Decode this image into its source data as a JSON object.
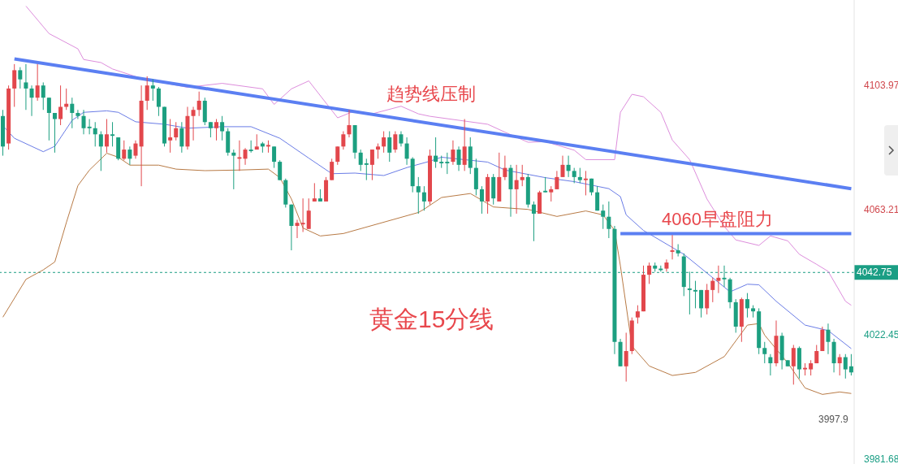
{
  "chart_data": {
    "type": "candlestick",
    "categories": [
      null,
      null,
      null,
      null,
      null,
      null,
      null,
      null,
      null,
      null,
      null,
      null,
      null,
      null,
      null,
      null,
      null,
      null,
      null,
      null,
      null,
      null,
      null,
      null,
      null,
      null,
      null,
      null,
      null,
      null,
      null,
      null,
      null,
      null,
      null,
      null,
      null,
      null,
      null,
      null,
      null,
      null,
      null,
      null,
      null,
      null,
      null,
      null,
      null,
      null,
      null,
      null,
      null,
      null,
      null,
      null,
      null,
      null,
      null,
      null,
      null,
      null,
      null,
      null,
      null,
      null,
      null,
      null,
      null,
      null,
      null,
      null,
      null,
      null,
      null,
      null,
      null,
      null,
      null,
      null,
      null,
      null,
      null,
      null,
      null,
      null,
      null,
      null,
      null,
      null,
      null,
      null,
      null,
      null,
      null,
      null,
      null,
      null,
      null,
      null,
      null,
      null,
      null,
      null,
      null,
      null,
      null,
      null,
      null,
      null,
      null,
      null,
      null,
      null,
      null,
      null,
      null,
      null,
      null,
      null,
      null,
      null,
      null,
      null,
      null,
      null,
      null,
      null,
      null,
      null,
      null,
      null,
      null,
      null,
      null,
      null,
      null,
      null,
      null,
      null,
      null,
      null,
      null,
      null,
      null,
      null,
      null,
      null
    ],
    "ohlc": [
      [
        4094,
        4096,
        4081,
        4084
      ],
      [
        4085,
        4104,
        4083,
        4103
      ],
      [
        4103,
        4111,
        4097,
        4109
      ],
      [
        4109,
        4110,
        4103,
        4106
      ],
      [
        4105,
        4111,
        4096,
        4103
      ],
      [
        4103,
        4104,
        4094,
        4100
      ],
      [
        4100,
        4111,
        4099,
        4104
      ],
      [
        4104,
        4105,
        4096,
        4100
      ],
      [
        4100,
        4100,
        4086,
        4095
      ],
      [
        4095,
        4095,
        4082,
        4093
      ],
      [
        4093,
        4104,
        4091,
        4097
      ],
      [
        4097,
        4103,
        4096,
        4098
      ],
      [
        4098,
        4100,
        4090,
        4095
      ],
      [
        4095,
        4096,
        4093,
        4094
      ],
      [
        4094,
        4096,
        4088,
        4090
      ],
      [
        4090.5,
        4093,
        4088,
        4090
      ],
      [
        4090,
        4092,
        4084,
        4088
      ],
      [
        4088,
        4089,
        4076,
        4084
      ],
      [
        4084,
        4093,
        4082,
        4088
      ],
      [
        4088,
        4092,
        4084,
        4087.5
      ],
      [
        4087,
        4087,
        4079.5,
        4080
      ],
      [
        4080,
        4086,
        4079.5,
        4083
      ],
      [
        4083,
        4084,
        4078,
        4080
      ],
      [
        4081,
        4086,
        4080,
        4085
      ],
      [
        4084,
        4104,
        4071,
        4099
      ],
      [
        4099,
        4107,
        4096,
        4104
      ],
      [
        4104,
        4106,
        4099,
        4103
      ],
      [
        4103,
        4103.5,
        4094,
        4097
      ],
      [
        4097,
        4097,
        4084,
        4085
      ],
      [
        4086,
        4093,
        4082,
        4087
      ],
      [
        4087,
        4092,
        4086,
        4090
      ],
      [
        4090,
        4092,
        4082,
        4084
      ],
      [
        4084,
        4097,
        4083,
        4094
      ],
      [
        4094,
        4097,
        4086,
        4096
      ],
      [
        4096,
        4102,
        4094,
        4099
      ],
      [
        4099,
        4100,
        4091,
        4092
      ],
      [
        4092,
        4092,
        4087,
        4090
      ],
      [
        4090,
        4093,
        4086,
        4092
      ],
      [
        4092,
        4094,
        4086,
        4089
      ],
      [
        4089,
        4090,
        4081,
        4082
      ],
      [
        4082,
        4083,
        4070,
        4081
      ],
      [
        4080,
        4086,
        4076,
        4080.5
      ],
      [
        4080,
        4083.5,
        4078,
        4083
      ],
      [
        4083,
        4086,
        4082,
        4082.5
      ],
      [
        4083,
        4088,
        4083,
        4084
      ],
      [
        4085,
        4085.5,
        4082,
        4084
      ],
      [
        4084,
        4086,
        4082,
        4084.5
      ],
      [
        4084,
        4084,
        4077,
        4079
      ],
      [
        4079,
        4079.5,
        4073,
        4073
      ],
      [
        4073,
        4073.5,
        4064,
        4065
      ],
      [
        4065,
        4065,
        4050,
        4058
      ],
      [
        4058,
        4060,
        4054,
        4059
      ],
      [
        4058.5,
        4067,
        4056,
        4059
      ],
      [
        4057,
        4067,
        4057,
        4063
      ],
      [
        4066,
        4072,
        4066,
        4067
      ],
      [
        4067,
        4070,
        4066,
        4066
      ],
      [
        4066,
        4074,
        4066,
        4073
      ],
      [
        4073,
        4080,
        4073,
        4079
      ],
      [
        4079,
        4084,
        4078,
        4084
      ],
      [
        4084,
        4089,
        4083,
        4088
      ],
      [
        4088,
        4096,
        4087,
        4091
      ],
      [
        4091,
        4091,
        4080,
        4082
      ],
      [
        4082,
        4083,
        4076,
        4078
      ],
      [
        4078.5,
        4080,
        4073,
        4078
      ],
      [
        4078,
        4083,
        4073,
        4083
      ],
      [
        4083,
        4085,
        4080,
        4084
      ],
      [
        4084,
        4089,
        4082,
        4087
      ],
      [
        4087,
        4089,
        4079,
        4082
      ],
      [
        4083,
        4089,
        4082,
        4088
      ],
      [
        4088,
        4089,
        4084,
        4085
      ],
      [
        4085,
        4087,
        4078,
        4080
      ],
      [
        4080,
        4080.5,
        4069,
        4071
      ],
      [
        4071,
        4074,
        4062,
        4069
      ],
      [
        4069,
        4071,
        4063,
        4066
      ],
      [
        4066,
        4083,
        4065,
        4081
      ],
      [
        4081,
        4087,
        4077,
        4079
      ],
      [
        4079,
        4081,
        4077,
        4078.5
      ],
      [
        4079,
        4082,
        4075,
        4078.5
      ],
      [
        4079,
        4086,
        4078,
        4083
      ],
      [
        4083,
        4084,
        4076,
        4078
      ],
      [
        4078,
        4093,
        4076,
        4084
      ],
      [
        4084,
        4087,
        4075,
        4077
      ],
      [
        4077,
        4080,
        4068,
        4070
      ],
      [
        4070,
        4071,
        4062,
        4066
      ],
      [
        4066,
        4075,
        4062,
        4074
      ],
      [
        4074,
        4075,
        4065,
        4067
      ],
      [
        4066,
        4082,
        4066,
        4074
      ],
      [
        4074,
        4081,
        4073,
        4077
      ],
      [
        4077,
        4078,
        4061,
        4070
      ],
      [
        4070,
        4078,
        4062,
        4073
      ],
      [
        4073,
        4078,
        4071,
        4074
      ],
      [
        4074,
        4075,
        4064,
        4065
      ],
      [
        4065,
        4066,
        4053,
        4062
      ],
      [
        4062,
        4069.5,
        4062,
        4069
      ],
      [
        4069.5,
        4074,
        4069,
        4069
      ],
      [
        4069,
        4071,
        4066,
        4070
      ],
      [
        4070,
        4076,
        4070,
        4074
      ],
      [
        4074,
        4081,
        4074,
        4078
      ],
      [
        4078,
        4081,
        4074,
        4076
      ],
      [
        4076,
        4077,
        4072,
        4074
      ],
      [
        4074,
        4077,
        4072,
        4073
      ],
      [
        4073,
        4076,
        4068,
        4073.5
      ],
      [
        4073.5,
        4073.5,
        4068,
        4069
      ],
      [
        4069,
        4071,
        4063,
        4063
      ],
      [
        4063,
        4065,
        4057,
        4061
      ],
      [
        4061,
        4066,
        4054,
        4057
      ],
      [
        4057,
        4058,
        4016,
        4020
      ],
      [
        4020,
        4021,
        4012,
        4012
      ],
      [
        4012,
        4023,
        4007,
        4017
      ],
      [
        4017,
        4028,
        4016,
        4027
      ],
      [
        4028,
        4032,
        4026,
        4030
      ],
      [
        4030,
        4045,
        4030,
        4042
      ],
      [
        4042,
        4046,
        4039,
        4045
      ],
      [
        4045,
        4046,
        4043,
        4044
      ],
      [
        4044,
        4045,
        4043,
        4043.5
      ],
      [
        4044,
        4047,
        4043,
        4046
      ],
      [
        4049.5,
        4055,
        4047,
        4050
      ],
      [
        4050,
        4052,
        4048,
        4049
      ],
      [
        4048,
        4049,
        4035,
        4038
      ],
      [
        4037.5,
        4043,
        4029,
        4037
      ],
      [
        4037,
        4040,
        4031,
        4036.5
      ],
      [
        4037,
        4037,
        4028,
        4031
      ],
      [
        4031,
        4039,
        4029,
        4037
      ],
      [
        4037,
        4041,
        4033,
        4040
      ],
      [
        4040,
        4045,
        4036,
        4041
      ],
      [
        4041,
        4045,
        4038,
        4040.5
      ],
      [
        4040.5,
        4041,
        4031,
        4033
      ],
      [
        4033,
        4034,
        4023,
        4025
      ],
      [
        4025,
        4034.5,
        4020,
        4034
      ],
      [
        4034,
        4036,
        4028,
        4031
      ],
      [
        4031,
        4032,
        4028,
        4030
      ],
      [
        4030,
        4031,
        4016,
        4018
      ],
      [
        4018,
        4020,
        4013,
        4016
      ],
      [
        4015,
        4016,
        4009,
        4013
      ],
      [
        4013,
        4027,
        4012,
        4022
      ],
      [
        4022,
        4023,
        4011,
        4014
      ],
      [
        4014,
        4014,
        4012,
        4012
      ],
      [
        4012,
        4019,
        4006,
        4018
      ],
      [
        4018,
        4018.5,
        4008,
        4011
      ],
      [
        4011,
        4013,
        4009,
        4011.5
      ],
      [
        4011,
        4014,
        4009,
        4013
      ],
      [
        4013,
        4019,
        4013,
        4017
      ],
      [
        4017,
        4025,
        4017,
        4024
      ],
      [
        4024,
        4026,
        4016,
        4020
      ],
      [
        4020,
        4021,
        4010,
        4013
      ],
      [
        4013,
        4016,
        4009,
        4015
      ],
      [
        4015,
        4016,
        4008,
        4011
      ],
      [
        4012,
        4016,
        4009,
        4010
      ]
    ],
    "series": [
      {
        "type": "line",
        "color": "#dd8ddc",
        "values": [
          null,
          null,
          null,
          null,
          4130,
          null,
          null,
          null,
          4121,
          null,
          null,
          null,
          null,
          4116,
          4112.5,
          null,
          null,
          4111.5,
          null,
          4109.4,
          null,
          null,
          null,
          null,
          4106.3,
          null,
          4105.5,
          null,
          null,
          null,
          null,
          null,
          4103.4,
          null,
          null,
          null,
          null,
          null,
          4104.7,
          null,
          null,
          null,
          null,
          null,
          null,
          4102.9,
          null,
          4097.8,
          null,
          null,
          4102.9,
          null,
          null,
          4105.5,
          null,
          null,
          null,
          null,
          4093.4,
          null,
          null,
          4095.7,
          null,
          null,
          4094.7,
          null,
          null,
          null,
          null,
          4097.2,
          null,
          null,
          4094.7,
          null,
          4093.9,
          null,
          null,
          null,
          null,
          4092.6,
          null,
          null,
          null,
          null,
          4091.3,
          null,
          null,
          4088.7,
          null,
          null,
          null,
          4085.4,
          null,
          null,
          4085.6,
          null,
          null,
          null,
          null,
          4082.8,
          null,
          4079.7,
          null,
          null,
          null,
          null,
          4079.7,
          4095.2,
          null,
          4101.1,
          null,
          4100.3,
          null,
          null,
          4095.2,
          null,
          4086.1,
          null,
          null,
          4079.7,
          null,
          null,
          4066.8,
          null,
          null,
          4057.8,
          null,
          4053.4,
          null,
          null,
          null,
          4051.6,
          null,
          4054.7,
          null,
          null,
          4053.1,
          null,
          4048.7,
          null,
          null,
          4045.4,
          null,
          4043.1,
          null,
          null,
          4033.3,
          4032.0
        ]
      },
      {
        "type": "line",
        "color": "#6a7ce6",
        "values": [
          4090.8,
          null,
          4086.7,
          null,
          null,
          null,
          null,
          4082.3,
          null,
          4084.1,
          null,
          null,
          4092.6,
          null,
          4095.2,
          null,
          null,
          null,
          4095.7,
          null,
          4095.2,
          null,
          null,
          4092.1,
          null,
          null,
          null,
          null,
          4091.3,
          null,
          null,
          null,
          4090,
          null,
          null,
          null,
          null,
          null,
          4090.5,
          null,
          null,
          null,
          null,
          4090.5,
          null,
          null,
          null,
          null,
          4086.7,
          null,
          null,
          null,
          null,
          4080.2,
          null,
          null,
          null,
          4075.1,
          null,
          null,
          null,
          4075.3,
          null,
          null,
          null,
          null,
          4074.5,
          null,
          null,
          null,
          4077.1,
          null,
          null,
          null,
          4079.2,
          null,
          4080.5,
          null,
          null,
          null,
          4079.7,
          null,
          null,
          null,
          4078.9,
          null,
          null,
          4076.3,
          null,
          null,
          null,
          null,
          null,
          null,
          4073.8,
          null,
          null,
          null,
          null,
          4072.5,
          null,
          null,
          null,
          null,
          null,
          4070.2,
          null,
          4067.6,
          4061.6,
          null,
          null,
          4056.5,
          null,
          null,
          null,
          null,
          null,
          null,
          4048.7,
          null,
          null,
          null,
          null,
          null,
          null,
          null,
          4036.4,
          null,
          null,
          4038.9,
          null,
          4038.7,
          null,
          null,
          4033.3,
          null,
          null,
          null,
          null,
          4025.5,
          null,
          null,
          null,
          4023.7,
          null,
          null,
          null,
          4017.8
        ]
      },
      {
        "type": "line",
        "color": "#b87a45",
        "values": [
          4028.1,
          null,
          null,
          null,
          4040.5,
          null,
          null,
          4043.6,
          null,
          4046.2,
          null,
          4059.1,
          null,
          4071.2,
          null,
          4076.3,
          null,
          null,
          4081.8,
          null,
          4080.5,
          null,
          4077.9,
          null,
          null,
          null,
          null,
          4077.9,
          null,
          null,
          4076.6,
          null,
          null,
          null,
          null,
          4076.1,
          null,
          null,
          null,
          null,
          null,
          4076.3,
          null,
          null,
          null,
          null,
          4076.6,
          null,
          4073.8,
          null,
          4066.8,
          null,
          4057.3,
          null,
          null,
          4054.7,
          null,
          null,
          null,
          4055.5,
          null,
          null,
          null,
          null,
          null,
          null,
          null,
          null,
          null,
          null,
          null,
          null,
          4062.4,
          4063.5,
          null,
          null,
          4067.3,
          null,
          null,
          null,
          null,
          4068.6,
          null,
          null,
          null,
          4064.2,
          null,
          null,
          null,
          null,
          null,
          4063.4,
          null,
          null,
          null,
          null,
          4061.1,
          null,
          null,
          null,
          null,
          4062.9,
          null,
          null,
          4061.6,
          null,
          4056.5,
          4044.9,
          null,
          4018.6,
          null,
          null,
          4012.1,
          null,
          null,
          null,
          4009,
          null,
          null,
          null,
          4010,
          null,
          null,
          null,
          null,
          4015.2,
          null,
          null,
          null,
          4025.5,
          null,
          4026,
          4022.2,
          null,
          null,
          null,
          4013.1,
          null,
          null,
          4004.9,
          null,
          null,
          4002.8,
          null,
          null,
          4003.6,
          null,
          4003.1
        ]
      },
      {
        "type": "line",
        "color": "#5b7ff2",
        "values": [
          null,
          null,
          4112.7,
          null,
          null,
          null,
          null,
          null,
          null,
          null,
          null,
          null,
          null,
          null,
          null,
          null,
          null,
          null,
          null,
          null,
          null,
          null,
          null,
          null,
          null,
          null,
          null,
          null,
          null,
          null,
          null,
          null,
          null,
          null,
          null,
          null,
          null,
          null,
          null,
          null,
          null,
          null,
          null,
          null,
          null,
          null,
          null,
          null,
          null,
          null,
          null,
          null,
          null,
          null,
          null,
          null,
          null,
          null,
          null,
          null,
          null,
          null,
          null,
          null,
          null,
          null,
          null,
          null,
          null,
          null,
          null,
          null,
          null,
          null,
          null,
          null,
          null,
          null,
          null,
          null,
          null,
          null,
          null,
          null,
          null,
          null,
          null,
          null,
          null,
          null,
          null,
          null,
          null,
          null,
          null,
          null,
          null,
          null,
          null,
          null,
          null,
          null,
          null,
          null,
          null,
          null,
          null,
          null,
          null,
          null,
          null,
          null,
          null,
          null,
          null,
          null,
          null,
          null,
          null,
          null,
          null,
          null,
          null,
          null,
          null,
          null,
          null,
          null,
          null,
          null,
          null,
          null,
          null,
          null,
          null,
          null,
          null,
          null,
          null,
          null,
          null,
          null,
          null,
          null,
          null,
          null,
          null,
          4070.2
        ]
      },
      {
        "type": "line",
        "color": "#5b7ff2",
        "values": [
          null,
          null,
          null,
          null,
          null,
          null,
          null,
          null,
          null,
          null,
          null,
          null,
          null,
          null,
          null,
          null,
          null,
          null,
          null,
          null,
          null,
          null,
          null,
          null,
          null,
          null,
          null,
          null,
          null,
          null,
          null,
          null,
          null,
          null,
          null,
          null,
          null,
          null,
          null,
          null,
          null,
          null,
          null,
          null,
          null,
          null,
          null,
          null,
          null,
          null,
          null,
          null,
          null,
          null,
          null,
          null,
          null,
          null,
          null,
          null,
          null,
          null,
          null,
          null,
          null,
          null,
          null,
          null,
          null,
          null,
          null,
          null,
          null,
          null,
          null,
          null,
          null,
          null,
          null,
          null,
          null,
          null,
          null,
          null,
          null,
          null,
          null,
          null,
          null,
          null,
          null,
          null,
          null,
          null,
          null,
          null,
          null,
          null,
          null,
          null,
          null,
          null,
          null,
          null,
          null,
          null,
          null,
          4055.5,
          null,
          null,
          null,
          null,
          null,
          null,
          null,
          null,
          null,
          null,
          null,
          null,
          null,
          null,
          null,
          null,
          null,
          null,
          null,
          null,
          null,
          null,
          null,
          null,
          null,
          null,
          null,
          null,
          null,
          null,
          null,
          null,
          null,
          null,
          null,
          null,
          null,
          null,
          null,
          4055.5
        ]
      }
    ],
    "ylim": [
      3980,
      4132
    ],
    "yticks": [
      3981.68,
      4022.45,
      4063.21,
      4103.97
    ],
    "tick_labels": "y",
    "ref_lines": [
      {
        "axis": "y",
        "value": 4042.75,
        "label": "4042.75",
        "color": "#1a9e84",
        "line_style": "dashed"
      }
    ],
    "annotations": [
      "趋势线压制",
      {
        "text": "4060早盘阻力",
        "y": 4060
      },
      "黄金15分线",
      "3997.9"
    ]
  }
}
